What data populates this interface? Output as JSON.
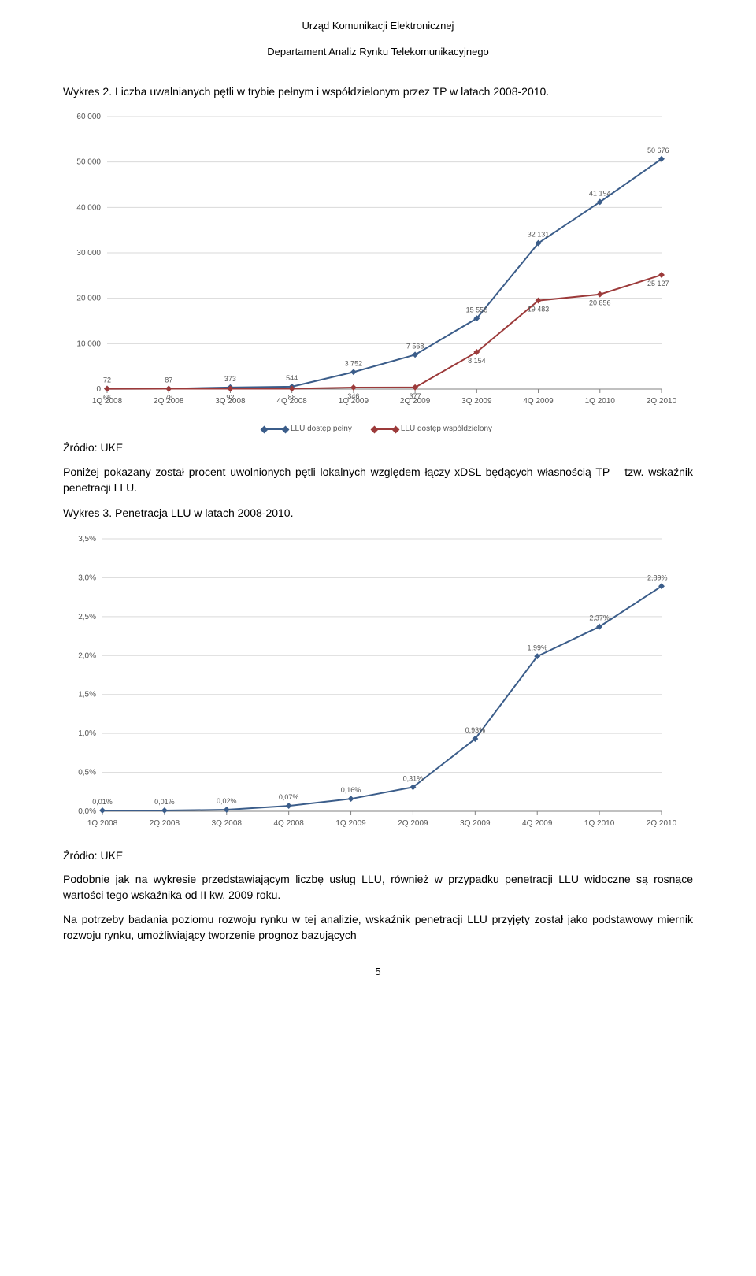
{
  "header": {
    "line1": "Urząd Komunikacji Elektronicznej",
    "line2": "Departament Analiz Rynku Telekomunikacyjnego"
  },
  "caption1": "Wykres 2. Liczba uwalnianych pętli w trybie pełnym i współdzielonym przez TP w latach 2008-2010.",
  "chart1": {
    "type": "line",
    "categories": [
      "1Q 2008",
      "2Q 2008",
      "3Q 2008",
      "4Q 2008",
      "1Q 2009",
      "2Q 2009",
      "3Q 2009",
      "4Q 2009",
      "1Q 2010",
      "2Q 2010"
    ],
    "ylim": [
      0,
      60000
    ],
    "ytick_step": 10000,
    "ylabels": [
      "0",
      "10 000",
      "20 000",
      "30 000",
      "40 000",
      "50 000",
      "60 000"
    ],
    "background_color": "#ffffff",
    "grid_color": "#d9d9d9",
    "axis_color": "#808080",
    "axis_fontsize": 10,
    "label_fontsize": 9,
    "label_color": "#555555",
    "marker_size": 4,
    "line_width": 2,
    "series": [
      {
        "name": "LLU dostęp pełny",
        "color": "#3b5d8a",
        "values": [
          72,
          87,
          373,
          544,
          3752,
          7568,
          15556,
          32131,
          41194,
          50676
        ],
        "labels": [
          "72",
          "87",
          "373",
          "544",
          "3 752",
          "7 568",
          "15 556",
          "32 131",
          "41 194",
          "50 676"
        ]
      },
      {
        "name": "LLU dostęp współdzielony",
        "color": "#9c3a3a",
        "values": [
          66,
          76,
          92,
          88,
          346,
          377,
          8154,
          19483,
          20856,
          25127
        ],
        "labels": [
          "66",
          "76",
          "92",
          "88",
          "346",
          "377",
          "8 154",
          "19 483",
          "20 856",
          "25 127"
        ]
      }
    ],
    "legend": {
      "series1": "LLU dostęp pełny",
      "series2": "LLU dostęp współdzielony"
    }
  },
  "source1": "Źródło: UKE",
  "para1": "Poniżej pokazany został procent uwolnionych pętli lokalnych względem łączy xDSL będących własnością TP – tzw. wskaźnik penetracji LLU.",
  "caption2": "Wykres 3. Penetracja LLU w latach 2008-2010.",
  "chart2": {
    "type": "line",
    "categories": [
      "1Q 2008",
      "2Q 2008",
      "3Q 2008",
      "4Q 2008",
      "1Q 2009",
      "2Q 2009",
      "3Q 2009",
      "4Q 2009",
      "1Q 2010",
      "2Q 2010"
    ],
    "ylim": [
      0,
      3.5
    ],
    "ytick_step": 0.5,
    "ylabels": [
      "0,0%",
      "0,5%",
      "1,0%",
      "1,5%",
      "2,0%",
      "2,5%",
      "3,0%",
      "3,5%"
    ],
    "background_color": "#ffffff",
    "grid_color": "#d9d9d9",
    "axis_color": "#808080",
    "axis_fontsize": 10,
    "label_fontsize": 9,
    "label_color": "#555555",
    "marker_size": 4,
    "line_width": 2,
    "series": [
      {
        "name": "Penetracja LLU",
        "color": "#3b5d8a",
        "values": [
          0.01,
          0.01,
          0.02,
          0.07,
          0.16,
          0.31,
          0.93,
          1.99,
          2.37,
          2.89
        ],
        "labels": [
          "0,01%",
          "0,01%",
          "0,02%",
          "0,07%",
          "0,16%",
          "0,31%",
          "0,93%",
          "1,99%",
          "2,37%",
          "2,89%"
        ]
      }
    ]
  },
  "source2": "Źródło: UKE",
  "para2": "Podobnie jak na wykresie przedstawiającym liczbę usług LLU, również w przypadku penetracji LLU widoczne są rosnące wartości tego wskaźnika od II kw. 2009 roku.",
  "para3": "Na potrzeby badania poziomu rozwoju rynku w tej analizie, wskaźnik penetracji LLU przyjęty został jako podstawowy miernik rozwoju rynku, umożliwiający tworzenie prognoz bazujących",
  "page_number": "5"
}
